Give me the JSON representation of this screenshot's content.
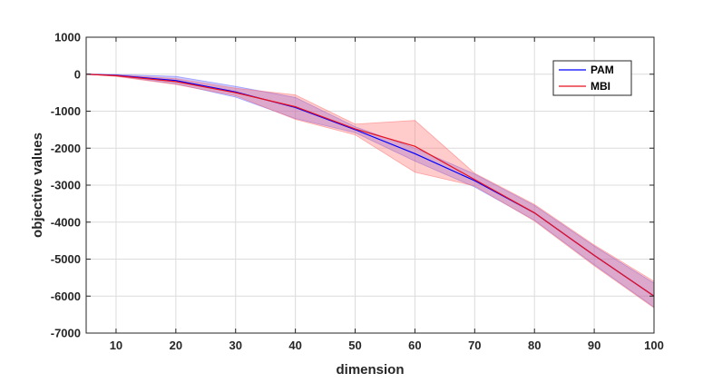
{
  "chart_data": {
    "type": "line",
    "title": "",
    "xlabel": "dimension",
    "ylabel": "objective values",
    "xlim": [
      5,
      100
    ],
    "ylim": [
      -7000,
      1000
    ],
    "xticks": [
      10,
      20,
      30,
      40,
      50,
      60,
      70,
      80,
      90,
      100
    ],
    "yticks": [
      1000,
      0,
      -1000,
      -2000,
      -3000,
      -4000,
      -5000,
      -6000,
      -7000
    ],
    "grid": true,
    "legend_position": "top-right",
    "x": [
      5,
      10,
      20,
      30,
      40,
      50,
      60,
      70,
      80,
      90,
      100
    ],
    "series": [
      {
        "name": "PAM",
        "color": "#0000ff",
        "band_color": "#6666ff",
        "values": [
          0,
          -30,
          -170,
          -480,
          -900,
          -1500,
          -2150,
          -2880,
          -3750,
          -4900,
          -6000
        ],
        "upper": [
          0,
          -10,
          -60,
          -330,
          -630,
          -1420,
          -2000,
          -2700,
          -3550,
          -4650,
          -5650
        ],
        "lower": [
          0,
          -50,
          -260,
          -620,
          -1200,
          -1580,
          -2350,
          -3050,
          -3950,
          -5150,
          -6300
        ]
      },
      {
        "name": "MBI",
        "color": "#e8101e",
        "band_color": "#ff6b6b",
        "values": [
          0,
          -40,
          -200,
          -500,
          -880,
          -1480,
          -1950,
          -2850,
          -3750,
          -4900,
          -6000
        ],
        "upper": [
          0,
          -20,
          -120,
          -380,
          -560,
          -1350,
          -1250,
          -2680,
          -3520,
          -4620,
          -5600
        ],
        "lower": [
          0,
          -60,
          -280,
          -580,
          -1220,
          -1640,
          -2650,
          -3020,
          -3970,
          -5180,
          -6320
        ]
      }
    ]
  }
}
